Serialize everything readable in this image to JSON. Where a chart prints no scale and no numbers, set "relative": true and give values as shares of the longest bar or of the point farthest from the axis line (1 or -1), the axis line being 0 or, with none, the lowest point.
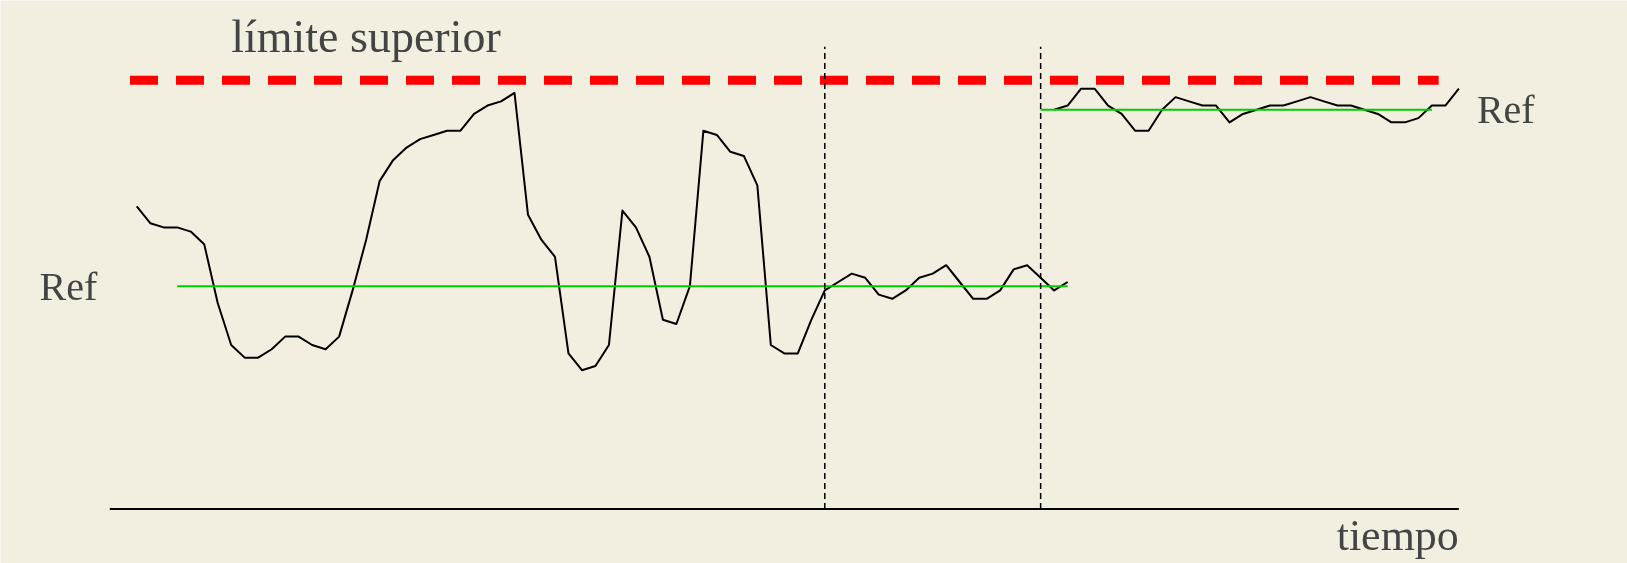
{
  "chart_data": {
    "type": "line",
    "relative": true,
    "xlabel": "tiempo",
    "tick_labels": false,
    "grid": false,
    "marker": "none",
    "line_style": "solid",
    "categories": [
      null,
      null,
      null,
      null,
      null,
      null,
      null,
      null,
      null,
      null,
      null,
      null,
      null,
      null,
      null,
      null,
      null,
      null,
      null,
      null,
      null,
      null,
      null,
      null,
      null,
      null,
      null,
      null,
      null,
      null,
      null,
      null,
      null,
      null,
      null,
      null,
      null,
      null,
      null,
      null,
      null,
      null,
      null,
      null,
      null,
      null,
      null,
      null,
      null,
      null,
      null,
      null,
      null,
      null,
      null,
      null,
      null,
      null,
      null,
      null,
      null,
      null,
      null,
      null,
      null,
      null,
      null,
      null,
      null,
      null,
      null,
      null,
      null,
      null,
      null,
      null,
      null,
      null,
      null,
      null,
      null,
      null,
      null,
      null,
      null,
      null,
      null,
      null,
      null,
      null,
      null,
      null,
      null,
      null,
      null,
      null,
      null,
      null,
      null,
      null,
      null
    ],
    "series": [
      {
        "color": "#000000",
        "values": [
          null,
          null,
          0.72,
          0.68,
          0.67,
          0.67,
          0.66,
          0.63,
          0.49,
          0.39,
          0.36,
          0.36,
          0.38,
          0.41,
          0.41,
          0.39,
          0.38,
          0.41,
          0.52,
          0.64,
          0.78,
          0.83,
          0.86,
          0.88,
          0.89,
          0.9,
          0.9,
          0.94,
          0.96,
          0.97,
          0.99,
          0.7,
          0.64,
          0.6,
          0.37,
          0.33,
          0.34,
          0.39,
          0.71,
          0.67,
          0.6,
          0.45,
          0.44,
          0.53,
          0.9,
          0.89,
          0.85,
          0.84,
          0.77,
          0.39,
          0.37,
          0.37,
          0.45,
          0.52,
          0.54,
          0.56,
          0.55,
          0.51,
          0.5,
          0.52,
          0.55,
          0.56,
          0.58,
          0.54,
          0.5,
          0.5,
          0.52,
          0.57,
          0.58,
          0.55,
          0.52,
          0.54,
          null,
          null,
          null,
          null,
          null,
          null,
          null,
          null,
          null,
          null,
          null,
          null,
          null,
          null,
          null,
          null,
          null,
          null,
          null,
          null,
          null,
          null,
          null,
          null,
          null,
          null,
          null,
          null,
          null
        ]
      },
      {
        "color": "#000000",
        "values": [
          null,
          null,
          null,
          null,
          null,
          null,
          null,
          null,
          null,
          null,
          null,
          null,
          null,
          null,
          null,
          null,
          null,
          null,
          null,
          null,
          null,
          null,
          null,
          null,
          null,
          null,
          null,
          null,
          null,
          null,
          null,
          null,
          null,
          null,
          null,
          null,
          null,
          null,
          null,
          null,
          null,
          null,
          null,
          null,
          null,
          null,
          null,
          null,
          null,
          null,
          null,
          null,
          null,
          null,
          null,
          null,
          null,
          null,
          null,
          null,
          null,
          null,
          null,
          null,
          null,
          null,
          null,
          null,
          null,
          null,
          0.95,
          0.96,
          1.0,
          1.0,
          0.96,
          0.94,
          0.9,
          0.9,
          0.95,
          0.98,
          0.97,
          0.96,
          0.96,
          0.92,
          0.94,
          0.95,
          0.96,
          0.96,
          0.97,
          0.98,
          0.97,
          0.96,
          0.96,
          0.95,
          0.94,
          0.92,
          0.92,
          0.93,
          0.96,
          0.96,
          1.0
        ]
      },
      {
        "name": "Ref",
        "color": "#00cc00",
        "values": [
          null,
          null,
          null,
          null,
          null,
          0.53,
          0.53,
          0.53,
          0.53,
          0.53,
          0.53,
          0.53,
          0.53,
          0.53,
          0.53,
          0.53,
          0.53,
          0.53,
          0.53,
          0.53,
          0.53,
          0.53,
          0.53,
          0.53,
          0.53,
          0.53,
          0.53,
          0.53,
          0.53,
          0.53,
          0.53,
          0.53,
          0.53,
          0.53,
          0.53,
          0.53,
          0.53,
          0.53,
          0.53,
          0.53,
          0.53,
          0.53,
          0.53,
          0.53,
          0.53,
          0.53,
          0.53,
          0.53,
          0.53,
          0.53,
          0.53,
          0.53,
          0.53,
          0.53,
          0.53,
          0.53,
          0.53,
          0.53,
          0.53,
          0.53,
          0.53,
          0.53,
          0.53,
          0.53,
          0.53,
          0.53,
          0.53,
          0.53,
          0.53,
          0.53,
          0.53,
          0.53,
          null,
          null,
          null,
          null,
          null,
          null,
          null,
          null,
          null,
          null,
          null,
          null,
          null,
          null,
          null,
          null,
          null,
          null,
          null,
          null,
          null,
          null,
          null,
          null,
          null,
          null,
          null,
          null,
          null
        ]
      },
      {
        "name": "Ref",
        "color": "#00cc00",
        "values": [
          null,
          null,
          null,
          null,
          null,
          null,
          null,
          null,
          null,
          null,
          null,
          null,
          null,
          null,
          null,
          null,
          null,
          null,
          null,
          null,
          null,
          null,
          null,
          null,
          null,
          null,
          null,
          null,
          null,
          null,
          null,
          null,
          null,
          null,
          null,
          null,
          null,
          null,
          null,
          null,
          null,
          null,
          null,
          null,
          null,
          null,
          null,
          null,
          null,
          null,
          null,
          null,
          null,
          null,
          null,
          null,
          null,
          null,
          null,
          null,
          null,
          null,
          null,
          null,
          null,
          null,
          null,
          null,
          null,
          0.95,
          0.95,
          0.95,
          0.95,
          0.95,
          0.95,
          0.95,
          0.95,
          0.95,
          0.95,
          0.95,
          0.95,
          0.95,
          0.95,
          0.95,
          0.95,
          0.95,
          0.95,
          0.95,
          0.95,
          0.95,
          0.95,
          0.95,
          0.95,
          0.95,
          0.95,
          0.95,
          0.95,
          0.95,
          0.95,
          null,
          null
        ]
      }
    ],
    "ref_lines": [
      {
        "axis": "y",
        "value": 1.02,
        "label": "límite superior",
        "color": "#ff0000",
        "line_style": "dashed"
      }
    ]
  }
}
